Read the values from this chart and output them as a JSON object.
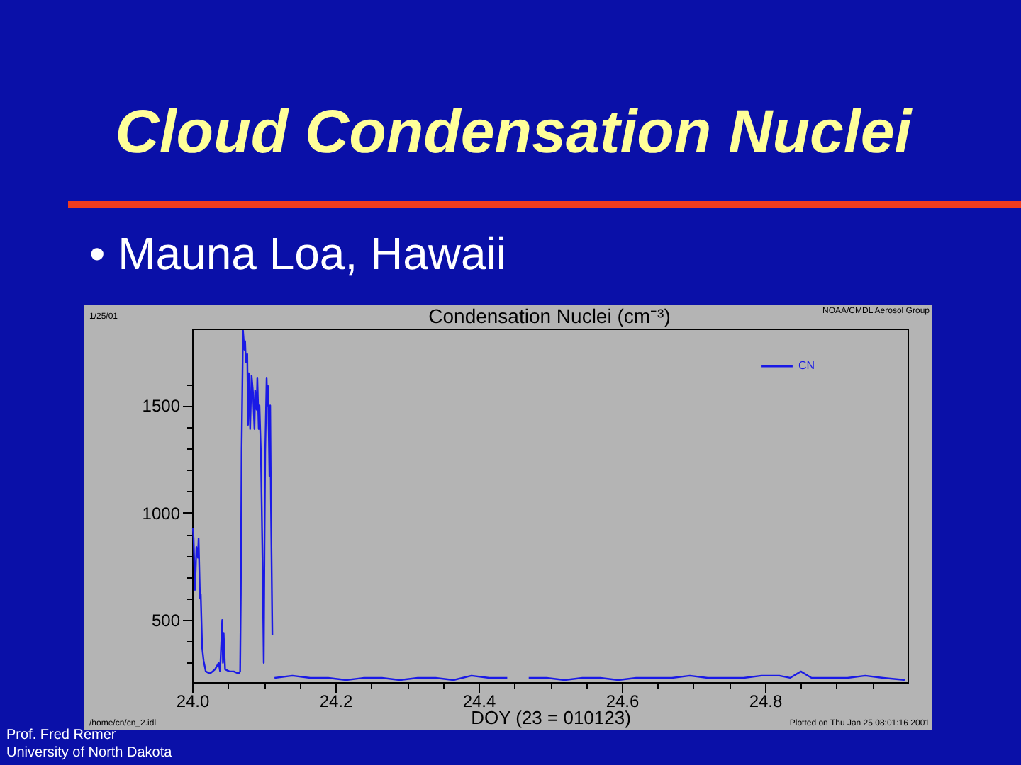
{
  "chart_data": {
    "type": "line",
    "title": "Cloud Condensation Nuclei",
    "subtitle": "• Mauna Loa, Hawaii",
    "xlabel": "DOY (23 = 010123)",
    "annotations": [
      "Condensation Nuclei (cm⁻³)",
      "1/25/01",
      "NOAA/CMDL Aerosol Group",
      "/home/cn/cn_2.idl",
      "Plotted on Thu Jan 25 08:01:16 2001",
      "Prof. Fred Remer",
      "University of North Dakota"
    ],
    "x": [
      24.001,
      24.002,
      24.004,
      24.006,
      24.008,
      24.009,
      24.011,
      24.012,
      24.014,
      24.016,
      24.019,
      24.025,
      24.032,
      24.037,
      24.039,
      24.042,
      24.043,
      24.044,
      24.046,
      24.052,
      24.058,
      24.065,
      24.067,
      24.068,
      24.069,
      24.071,
      24.073,
      24.074,
      24.075,
      24.077,
      24.078,
      24.079,
      24.081,
      24.083,
      24.085,
      24.087,
      24.088,
      24.09,
      24.091,
      24.093,
      24.094,
      24.096,
      24.098,
      24.1,
      24.101,
      24.102,
      24.104,
      24.105,
      24.106,
      24.108,
      24.109,
      24.11,
      24.112,
      24.113,
      24.115,
      24.14,
      24.165,
      24.19,
      24.215,
      24.24,
      24.265,
      24.29,
      24.315,
      24.34,
      24.365,
      24.39,
      24.415,
      24.44,
      24.455,
      24.47,
      24.495,
      24.52,
      24.545,
      24.57,
      24.595,
      24.62,
      24.645,
      24.67,
      24.695,
      24.72,
      24.745,
      24.77,
      24.795,
      24.82,
      24.835,
      24.85,
      24.865,
      24.89,
      24.915,
      24.94,
      24.965,
      24.995
    ],
    "series": [
      {
        "name": "CN",
        "color": "#1a1ae6",
        "values": [
          930,
          880,
          640,
          840,
          790,
          880,
          600,
          620,
          370,
          310,
          260,
          250,
          270,
          300,
          260,
          500,
          300,
          440,
          270,
          260,
          260,
          250,
          260,
          620,
          1280,
          1850,
          1760,
          1800,
          1700,
          1740,
          1410,
          1650,
          1390,
          1640,
          1560,
          1390,
          1570,
          1480,
          1630,
          1390,
          1500,
          1280,
          840,
          300,
          840,
          1280,
          1630,
          1500,
          1590,
          1170,
          1500,
          1060,
          430,
          null,
          230,
          240,
          230,
          230,
          220,
          230,
          230,
          220,
          230,
          230,
          220,
          240,
          230,
          230,
          null,
          230,
          230,
          220,
          230,
          230,
          220,
          230,
          230,
          230,
          240,
          230,
          230,
          230,
          240,
          240,
          230,
          260,
          230,
          230,
          230,
          240,
          230,
          220
        ]
      }
    ],
    "xlim": [
      24.0,
      25.0
    ],
    "ylim": [
      210,
      1855
    ],
    "xticks": [
      {
        "value": 24.0,
        "label": "24.0"
      },
      {
        "value": 24.05,
        "label": null
      },
      {
        "value": 24.1,
        "label": null
      },
      {
        "value": 24.15,
        "label": null
      },
      24.2,
      {
        "value": 24.25,
        "label": null
      },
      {
        "value": 24.3,
        "label": null
      },
      {
        "value": 24.35,
        "label": null
      },
      24.4,
      {
        "value": 24.45,
        "label": null
      },
      {
        "value": 24.5,
        "label": null
      },
      {
        "value": 24.55,
        "label": null
      },
      24.6,
      {
        "value": 24.65,
        "label": null
      },
      {
        "value": 24.7,
        "label": null
      },
      {
        "value": 24.75,
        "label": null
      },
      24.8,
      {
        "value": 24.85,
        "label": null
      },
      {
        "value": 24.9,
        "label": null
      },
      {
        "value": 24.95,
        "label": null
      }
    ],
    "yticks": [
      {
        "value": 300,
        "label": null
      },
      {
        "value": 400,
        "label": null
      },
      500,
      {
        "value": 600,
        "label": null
      },
      {
        "value": 700,
        "label": null
      },
      {
        "value": 800,
        "label": null
      },
      {
        "value": 900,
        "label": null
      },
      1000,
      {
        "value": 1100,
        "label": null
      },
      {
        "value": 1200,
        "label": null
      },
      {
        "value": 1300,
        "label": null
      },
      {
        "value": 1400,
        "label": null
      },
      1500,
      {
        "value": 1600,
        "label": null
      }
    ],
    "legend": "top right"
  }
}
